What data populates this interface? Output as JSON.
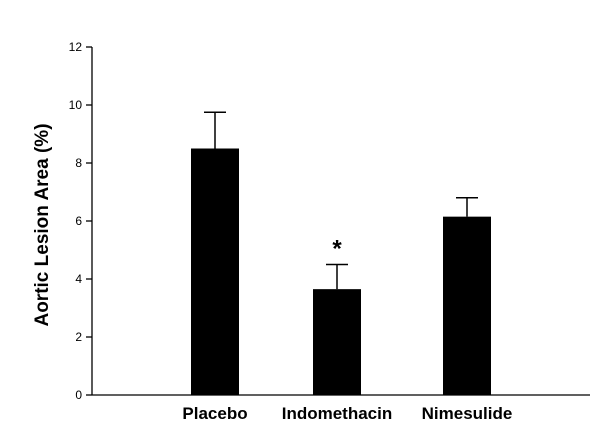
{
  "chart_data": {
    "type": "bar",
    "categories": [
      "Placebo",
      "Indomethacin",
      "Nimesulide"
    ],
    "values": [
      8.5,
      3.65,
      6.15
    ],
    "errors": [
      1.25,
      0.85,
      0.65
    ],
    "annotations": [
      "",
      "*",
      ""
    ],
    "ylabel": "Aortic Lesion Area (%)",
    "xlabel": "",
    "ylim": [
      0,
      12
    ],
    "yticks": [
      0,
      2,
      4,
      6,
      8,
      10,
      12
    ],
    "ytick_labels": [
      "0",
      "2",
      "4",
      "6",
      "8",
      "10",
      "12"
    ],
    "grid": false,
    "legend": "none",
    "bar_color": "#000000"
  }
}
